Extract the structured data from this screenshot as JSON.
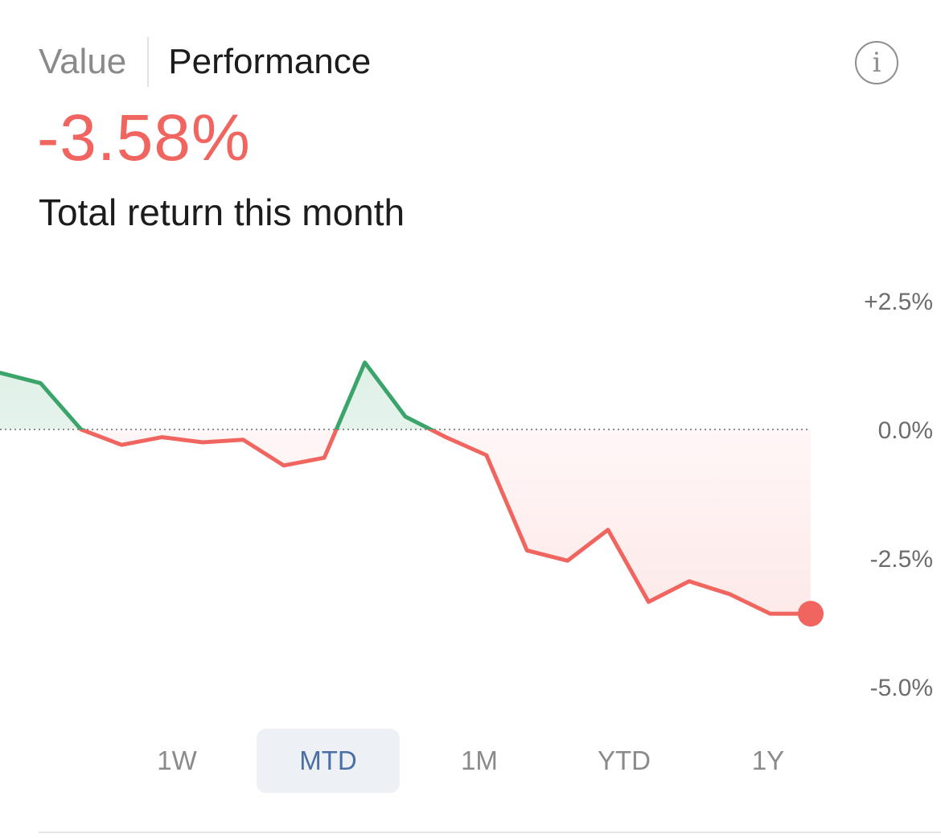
{
  "tabs": {
    "value_label": "Value",
    "performance_label": "Performance",
    "active": "Performance"
  },
  "info_button": {
    "icon": "info-icon",
    "glyph": "i"
  },
  "summary": {
    "return_value": "-3.58%",
    "caption": "Total return this month"
  },
  "colors": {
    "positive": "#3aa46a",
    "negative": "#f0655f",
    "active_range_bg": "#edf0f5",
    "active_range_text": "#4a6fa5"
  },
  "chart_data": {
    "type": "area",
    "x": [
      1,
      2,
      3,
      4,
      5,
      6,
      7,
      8,
      9,
      10,
      11,
      12,
      13,
      14,
      15,
      16,
      17,
      18,
      19,
      20,
      21
    ],
    "values": [
      1.1,
      0.9,
      0.0,
      -0.3,
      -0.15,
      -0.25,
      -0.2,
      -0.7,
      -0.55,
      1.3,
      0.25,
      -0.15,
      -0.5,
      -2.35,
      -2.55,
      -1.95,
      -3.35,
      -2.95,
      -3.2,
      -3.58,
      -3.58
    ],
    "yticks": [
      "+2.5%",
      "0.0%",
      "-2.5%",
      "-5.0%"
    ],
    "ytick_values": [
      2.5,
      0.0,
      -2.5,
      -5.0
    ],
    "ylim": [
      -5.0,
      2.5
    ],
    "baseline": 0.0,
    "baseline_style": "dotted",
    "end_marker": true,
    "grid": false,
    "legend": "none"
  },
  "ranges": {
    "items": [
      "1W",
      "MTD",
      "1M",
      "YTD",
      "1Y"
    ],
    "active": "MTD"
  }
}
